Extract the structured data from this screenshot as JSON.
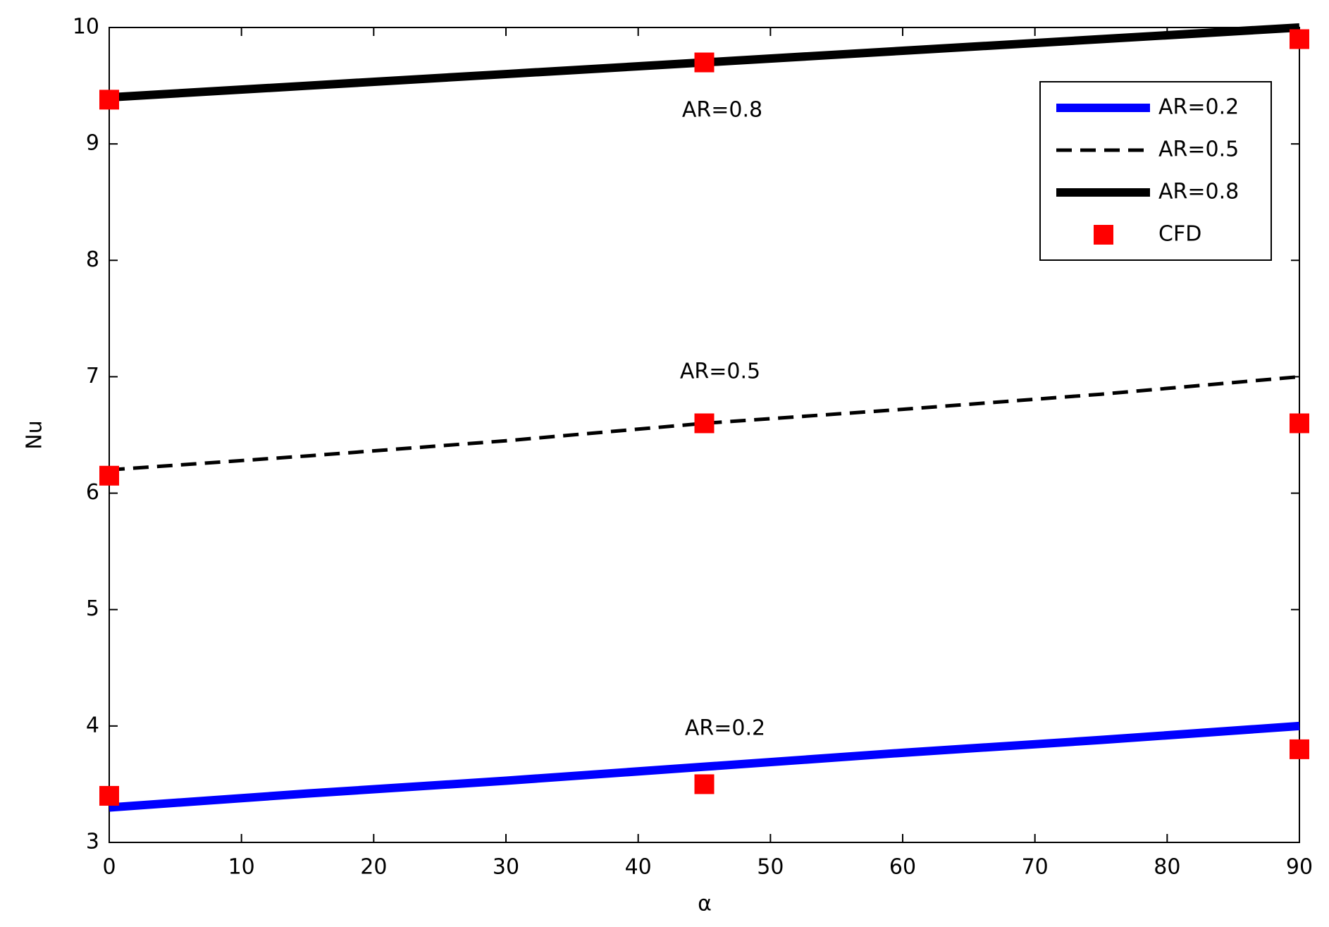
{
  "chart_data": {
    "type": "line",
    "xlabel": "α",
    "ylabel": "Nu",
    "xlim": [
      0,
      90
    ],
    "xticks": [
      0,
      10,
      20,
      30,
      40,
      50,
      60,
      70,
      80,
      90
    ],
    "ylim": [
      3,
      10
    ],
    "yticks": [
      3,
      4,
      5,
      6,
      7,
      8,
      9,
      10
    ],
    "legend": "upper right",
    "series": [
      {
        "name": "AR=0.2",
        "color": "#0000ff",
        "linestyle": "solid",
        "x": [
          0,
          15,
          30,
          45,
          60,
          75,
          90
        ],
        "values": [
          3.3,
          3.42,
          3.53,
          3.65,
          3.77,
          3.88,
          4.0
        ]
      },
      {
        "name": "AR=0.5",
        "color": "#000000",
        "linestyle": "dashed",
        "x": [
          0,
          15,
          30,
          45,
          60,
          75,
          90
        ],
        "values": [
          6.2,
          6.32,
          6.45,
          6.6,
          6.72,
          6.85,
          7.0
        ]
      },
      {
        "name": "AR=0.8",
        "color": "#000000",
        "linestyle": "solid",
        "x": [
          0,
          15,
          30,
          45,
          60,
          75,
          90
        ],
        "values": [
          9.4,
          9.5,
          9.6,
          9.7,
          9.8,
          9.9,
          10.0
        ]
      },
      {
        "name": "CFD",
        "color": "#ff0000",
        "marker": "square",
        "x": [
          0,
          0,
          0,
          45,
          45,
          45,
          90,
          90,
          90
        ],
        "values": [
          3.4,
          6.15,
          9.38,
          3.5,
          6.6,
          9.7,
          3.8,
          6.6,
          9.9
        ]
      }
    ],
    "annotations": [
      "AR=0.8",
      "AR=0.5",
      "AR=0.2"
    ]
  }
}
